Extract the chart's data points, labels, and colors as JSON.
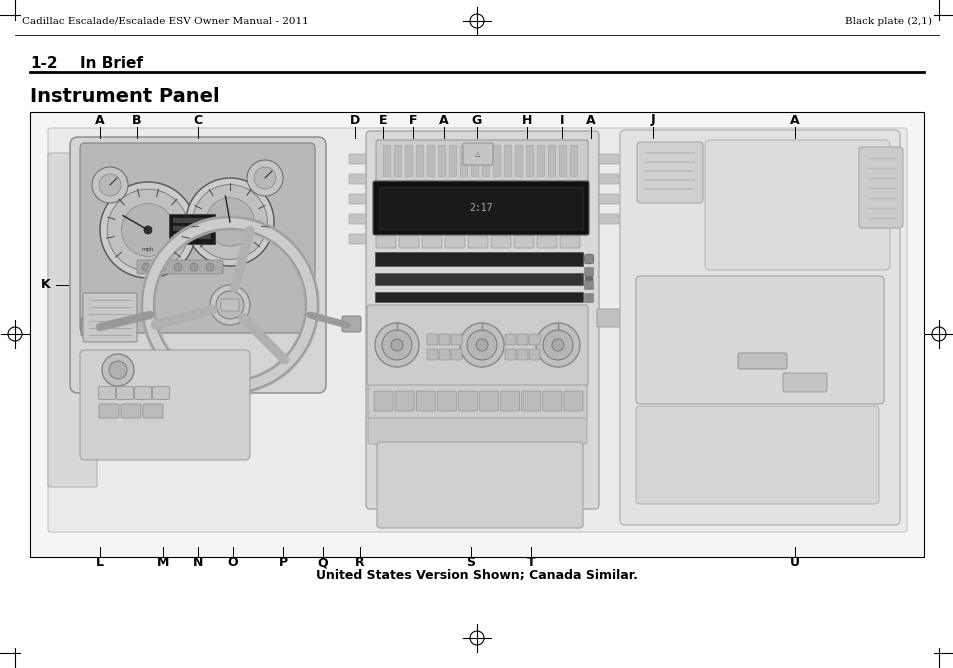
{
  "bg_color": "#ffffff",
  "font_color": "#000000",
  "line_color": "#000000",
  "header_left": "Cadillac Escalade/Escalade ESV Owner Manual - 2011",
  "header_right": "Black plate (2,1)",
  "section_number": "1-2",
  "section_title": "In Brief",
  "diagram_title": "Instrument Panel",
  "caption": "United States Version Shown; Canada Similar.",
  "top_labels": [
    [
      "A",
      100
    ],
    [
      "B",
      137
    ],
    [
      "C",
      198
    ],
    [
      "D",
      355
    ],
    [
      "E",
      383
    ],
    [
      "F",
      413
    ],
    [
      "A",
      444
    ],
    [
      "G",
      477
    ],
    [
      "H",
      527
    ],
    [
      "I",
      562
    ],
    [
      "A",
      591
    ],
    [
      "J",
      653
    ],
    [
      "A",
      795
    ]
  ],
  "bottom_labels": [
    [
      "L",
      100
    ],
    [
      "M",
      163
    ],
    [
      "N",
      198
    ],
    [
      "O",
      233
    ],
    [
      "P",
      283
    ],
    [
      "Q",
      323
    ],
    [
      "R",
      360
    ],
    [
      "S",
      471
    ],
    [
      "T",
      531
    ],
    [
      "U",
      795
    ]
  ],
  "label_K": [
    46,
    285
  ],
  "header_fontsize": 7.5,
  "section_fontsize": 11,
  "title_fontsize": 14,
  "label_fontsize": 9,
  "caption_fontsize": 9
}
